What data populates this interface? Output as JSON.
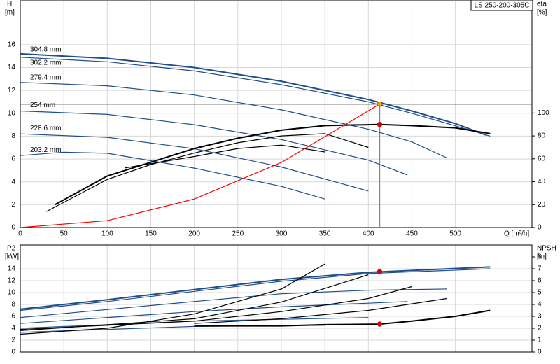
{
  "chart_data": [
    {
      "type": "line",
      "title": "LS 250-200-305C",
      "y_label": "H",
      "y_unit": "[m]",
      "y2_label": "eta",
      "y2_unit": "[%]",
      "x_label": "Q [m³/h]",
      "xlim": [
        0,
        588
      ],
      "xticks": [
        0,
        50,
        100,
        150,
        200,
        250,
        300,
        350,
        400,
        450,
        500
      ],
      "ylim": [
        0,
        19.85
      ],
      "yticks": [
        0,
        2,
        4,
        6,
        8,
        10,
        12,
        14,
        16
      ],
      "y2lim": [
        0,
        198
      ],
      "y2ticks": [
        0,
        20,
        40,
        60,
        80,
        100
      ],
      "grid": true,
      "series": [
        {
          "name": "304.8 mm",
          "color": "#1f4e8c",
          "x": [
            0,
            100,
            200,
            300,
            400,
            450,
            500,
            535
          ],
          "values": [
            15.2,
            14.8,
            14.0,
            12.8,
            11.2,
            10.2,
            9.1,
            8.1
          ]
        },
        {
          "name": "302.2 mm",
          "color": "#1f4e8c",
          "x": [
            0,
            100,
            200,
            300,
            400,
            450,
            500,
            540
          ],
          "values": [
            14.9,
            14.5,
            13.7,
            12.5,
            11.0,
            10.0,
            8.9,
            8.0
          ]
        },
        {
          "name": "279.4 mm",
          "color": "#1f4e8c",
          "x": [
            0,
            100,
            200,
            300,
            400,
            450,
            490
          ],
          "values": [
            12.7,
            12.4,
            11.6,
            10.3,
            8.6,
            7.5,
            6.1
          ]
        },
        {
          "name": "254 mm",
          "color": "#1f4e8c",
          "x": [
            0,
            100,
            200,
            300,
            400,
            445
          ],
          "values": [
            10.2,
            9.9,
            9.0,
            7.7,
            5.9,
            4.6
          ]
        },
        {
          "name": "228.6 mm",
          "color": "#1f4e8c",
          "x": [
            0,
            100,
            200,
            300,
            400
          ],
          "values": [
            8.2,
            7.9,
            6.9,
            5.3,
            3.2
          ]
        },
        {
          "name": "203.2 mm",
          "color": "#1f4e8c",
          "x": [
            0,
            50,
            100,
            200,
            300,
            350
          ],
          "values": [
            6.3,
            6.6,
            6.5,
            5.2,
            3.6,
            2.5
          ]
        },
        {
          "color": "#000000",
          "axis": "y2",
          "x": [
            40,
            100,
            150,
            200,
            250,
            300,
            350,
            413,
            450,
            500,
            540
          ],
          "values": [
            20,
            45,
            57,
            69,
            78,
            85,
            89,
            90,
            89,
            87,
            82
          ]
        },
        {
          "color": "#000000",
          "axis": "y2",
          "x": [
            30,
            100,
            150,
            200,
            250,
            300,
            350,
            400
          ],
          "values": [
            14,
            42,
            55,
            65,
            74,
            80,
            82,
            70
          ]
        },
        {
          "color": "#000000",
          "axis": "y2",
          "x": [
            120,
            200,
            250,
            300,
            350
          ],
          "values": [
            52,
            62,
            69,
            72,
            66
          ]
        },
        {
          "color": "#ff0000",
          "x": [
            0,
            100,
            200,
            300,
            413
          ],
          "values": [
            0,
            0.6,
            2.5,
            5.7,
            10.8
          ]
        }
      ],
      "points": [
        {
          "x": 413,
          "y": 10.8,
          "color": "#f0a000"
        },
        {
          "x": 413,
          "y": 90,
          "axis": "y2",
          "color": "#e00000"
        }
      ]
    },
    {
      "type": "line",
      "y_label": "P2",
      "y_unit": "[kW]",
      "y2_label": "NPSH",
      "y2_unit": "[m]",
      "xlim": [
        0,
        588
      ],
      "xticks": [
        0,
        50,
        100,
        150,
        200,
        250,
        300,
        350,
        400,
        450,
        500
      ],
      "ylim": [
        0,
        18
      ],
      "yticks": [
        0,
        2,
        4,
        6,
        8,
        10,
        12,
        14
      ],
      "y2lim": [
        0,
        9
      ],
      "y2ticks": [
        0,
        1,
        2,
        3,
        4,
        5,
        6,
        7,
        8
      ],
      "grid": true,
      "series": [
        {
          "color": "#1f4e8c",
          "x": [
            0,
            100,
            200,
            300,
            400,
            540
          ],
          "values": [
            7.2,
            8.8,
            10.5,
            12.2,
            13.4,
            14.3
          ]
        },
        {
          "color": "#1f4e8c",
          "x": [
            0,
            100,
            200,
            300,
            400,
            540
          ],
          "values": [
            7.0,
            8.5,
            10.2,
            11.9,
            13.2,
            14.0
          ]
        },
        {
          "color": "#1f4e8c",
          "x": [
            0,
            200,
            300,
            400,
            490
          ],
          "values": [
            5.8,
            8.5,
            9.8,
            10.4,
            10.6
          ]
        },
        {
          "color": "#1f4e8c",
          "x": [
            0,
            200,
            300,
            445
          ],
          "values": [
            4.8,
            6.8,
            7.6,
            8.5
          ]
        },
        {
          "color": "#1f4e8c",
          "x": [
            0,
            200,
            400
          ],
          "values": [
            4.0,
            5.2,
            5.8
          ]
        },
        {
          "color": "#1f4e8c",
          "x": [
            0,
            200,
            350
          ],
          "values": [
            3.3,
            4.3,
            4.5
          ]
        },
        {
          "color": "#000000",
          "axis": "y2",
          "x": [
            200,
            300,
            350,
            413,
            450,
            500,
            540
          ],
          "values": [
            2.2,
            2.2,
            2.3,
            2.35,
            2.6,
            3.0,
            3.5
          ]
        },
        {
          "color": "#000000",
          "axis": "y2",
          "x": [
            0,
            100,
            200,
            300,
            350
          ],
          "values": [
            1.5,
            2.0,
            3.2,
            5.3,
            7.4
          ]
        },
        {
          "color": "#000000",
          "axis": "y2",
          "x": [
            0,
            200,
            300,
            400
          ],
          "values": [
            1.8,
            2.8,
            4.2,
            6.5
          ]
        },
        {
          "color": "#000000",
          "axis": "y2",
          "x": [
            0,
            200,
            300,
            400,
            450
          ],
          "values": [
            1.9,
            2.6,
            3.4,
            4.5,
            5.5
          ]
        },
        {
          "color": "#000000",
          "axis": "y2",
          "x": [
            200,
            300,
            400,
            490
          ],
          "values": [
            2.4,
            2.8,
            3.5,
            4.5
          ]
        }
      ],
      "points": [
        {
          "x": 413,
          "y": 13.5,
          "color": "#e00000"
        },
        {
          "x": 413,
          "y": 2.35,
          "axis": "y2",
          "color": "#e00000"
        }
      ]
    }
  ]
}
